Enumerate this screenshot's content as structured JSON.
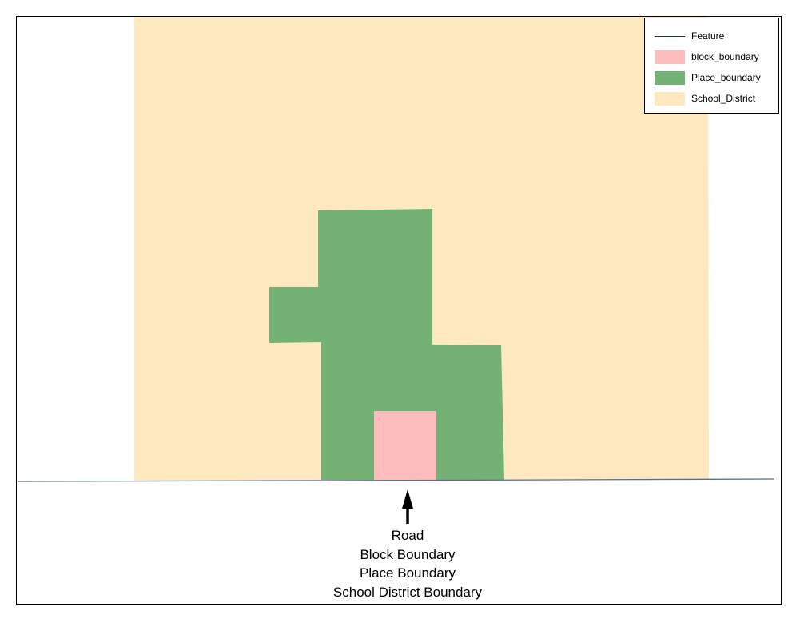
{
  "legend": {
    "items": [
      {
        "label": "Feature",
        "symbol": "line",
        "color": "#1f3550"
      },
      {
        "label": "block_boundary",
        "symbol": "fill",
        "color": "#fdbcbc"
      },
      {
        "label": "Place_boundary",
        "symbol": "fill",
        "color": "#74b174"
      },
      {
        "label": "School_District",
        "symbol": "fill",
        "color": "#fde8bf"
      }
    ]
  },
  "annotation": {
    "arrow_icon": "arrow-up-icon",
    "lines": [
      "Road",
      "Block Boundary",
      "Place Boundary",
      "School District Boundary"
    ]
  },
  "colors": {
    "school_district": "#fde8bf",
    "place_boundary": "#74b174",
    "block_boundary": "#fdbcbc",
    "road": "#5a6f8f"
  }
}
